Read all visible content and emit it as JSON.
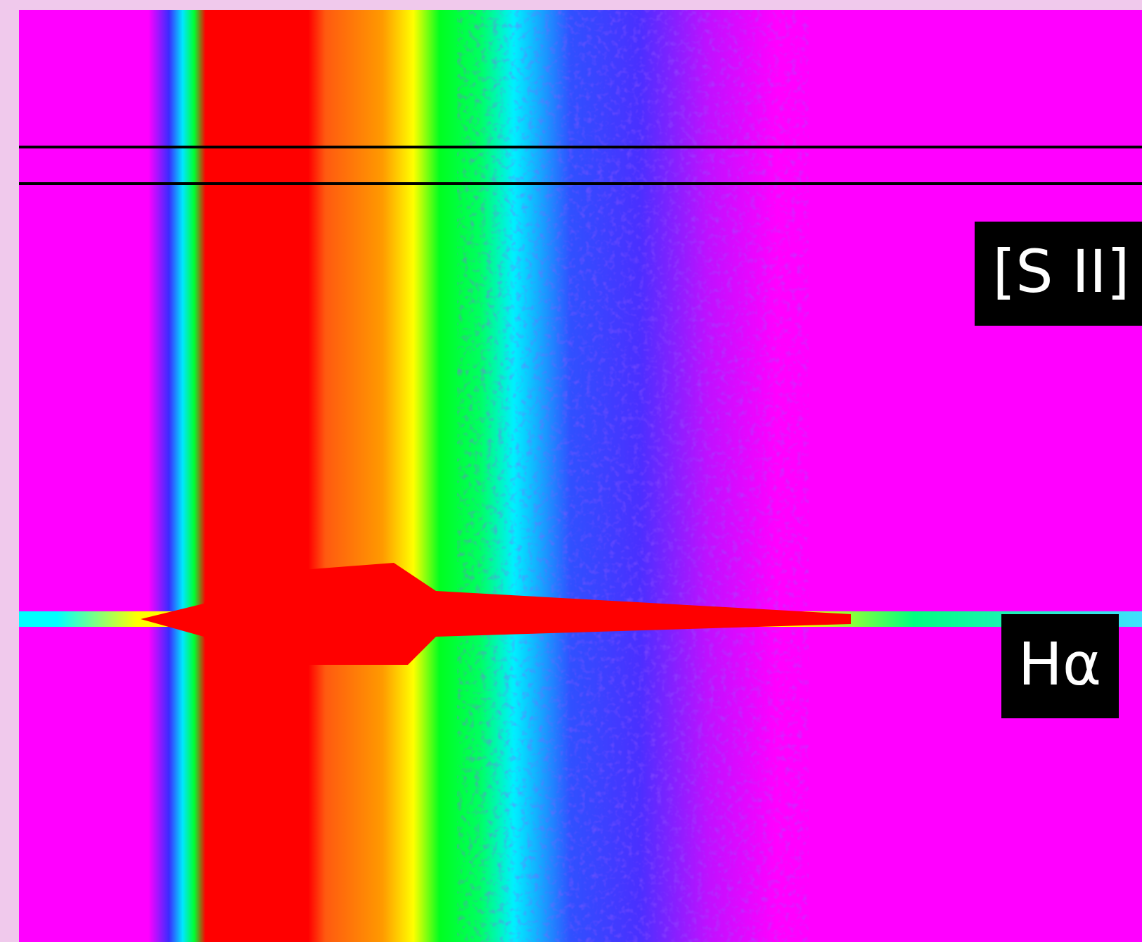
{
  "labels": {
    "sii": "[S II]",
    "halpha": "Hα"
  }
}
